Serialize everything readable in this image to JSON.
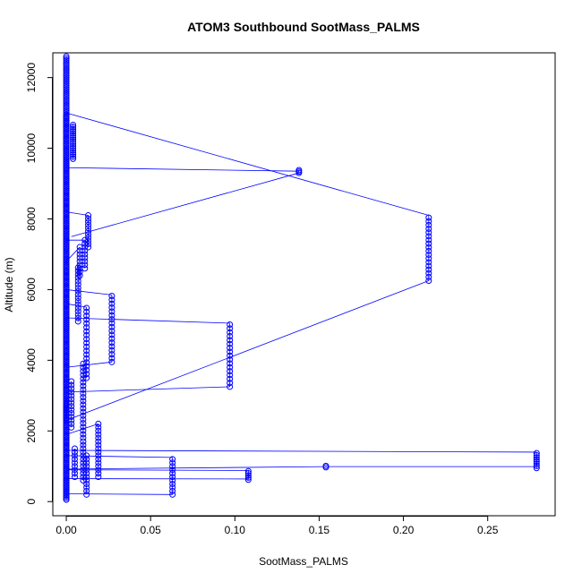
{
  "chart_data": {
    "type": "scatter",
    "title": "ATOM3 Southbound SootMass_PALMS",
    "xlabel": "SootMass_PALMS",
    "ylabel": "Altitude (m)",
    "xlim": [
      -0.008,
      0.29
    ],
    "ylim": [
      -400,
      12700
    ],
    "xticks": [
      0.0,
      0.05,
      0.1,
      0.15,
      0.2,
      0.25
    ],
    "xtick_labels": [
      "0.00",
      "0.05",
      "0.10",
      "0.15",
      "0.20",
      "0.25"
    ],
    "yticks": [
      0,
      2000,
      4000,
      6000,
      8000,
      10000,
      12000
    ],
    "ytick_labels": [
      "0",
      "2000",
      "4000",
      "6000",
      "8000",
      "10000",
      "12000"
    ],
    "grid": false,
    "marker": "open-circle",
    "line_connected": true,
    "color": "#0000ff",
    "segments": [
      {
        "x": 0.0,
        "y_start": 12600,
        "y_end": 60,
        "step": 55
      },
      {
        "x": 0.0,
        "y_start": 60,
        "y_end": 11000,
        "step": 55
      },
      {
        "x": 0.215,
        "y_start": 8100,
        "y_end": 6250,
        "step": 105
      },
      {
        "x": 0.0,
        "y_start": 2300,
        "y_end": 2800,
        "step": 60
      },
      {
        "x": 0.004,
        "y_start": 10700,
        "y_end": 9700,
        "step": 60
      },
      {
        "x": 0.138,
        "y_start": 9380,
        "y_end": 9300,
        "step": 40
      },
      {
        "x": 0.013,
        "y_start": 8100,
        "y_end": 7200,
        "step": 90
      },
      {
        "x": 0.011,
        "y_start": 7400,
        "y_end": 6600,
        "step": 100
      },
      {
        "x": 0.008,
        "y_start": 7200,
        "y_end": 6400,
        "step": 100
      },
      {
        "x": 0.027,
        "y_start": 5850,
        "y_end": 3950,
        "step": 110
      },
      {
        "x": 0.007,
        "y_start": 6700,
        "y_end": 5100,
        "step": 95
      },
      {
        "x": 0.097,
        "y_start": 5050,
        "y_end": 3250,
        "step": 110
      },
      {
        "x": 0.012,
        "y_start": 5500,
        "y_end": 3500,
        "step": 110
      },
      {
        "x": 0.01,
        "y_start": 3900,
        "y_end": 1800,
        "step": 105
      },
      {
        "x": 0.003,
        "y_start": 3400,
        "y_end": 2100,
        "step": 100
      },
      {
        "x": 0.019,
        "y_start": 2200,
        "y_end": 700,
        "step": 100
      },
      {
        "x": 0.01,
        "y_start": 1700,
        "y_end": 600,
        "step": 100
      },
      {
        "x": 0.005,
        "y_start": 1500,
        "y_end": 700,
        "step": 100
      },
      {
        "x": 0.279,
        "y_start": 1400,
        "y_end": 950,
        "step": 60
      },
      {
        "x": 0.154,
        "y_start": 1010,
        "y_end": 970,
        "step": 40
      },
      {
        "x": 0.063,
        "y_start": 1250,
        "y_end": 200,
        "step": 100
      },
      {
        "x": 0.108,
        "y_start": 900,
        "y_end": 620,
        "step": 60
      },
      {
        "x": 0.012,
        "y_start": 1300,
        "y_end": 200,
        "step": 100
      }
    ],
    "connectors": [
      [
        [
          0.0,
          11000
        ],
        [
          0.215,
          8100
        ]
      ],
      [
        [
          0.215,
          6250
        ],
        [
          0.0,
          2300
        ]
      ],
      [
        [
          0.0,
          9450
        ],
        [
          0.138,
          9350
        ]
      ],
      [
        [
          0.138,
          9300
        ],
        [
          0.003,
          7500
        ]
      ],
      [
        [
          0.0,
          8200
        ],
        [
          0.013,
          8100
        ]
      ],
      [
        [
          0.0,
          7400
        ],
        [
          0.011,
          7400
        ]
      ],
      [
        [
          0.0,
          6000
        ],
        [
          0.027,
          5850
        ]
      ],
      [
        [
          0.027,
          3950
        ],
        [
          0.0,
          3800
        ]
      ],
      [
        [
          0.0,
          5200
        ],
        [
          0.097,
          5050
        ]
      ],
      [
        [
          0.097,
          3250
        ],
        [
          0.0,
          3100
        ]
      ],
      [
        [
          0.0,
          1450
        ],
        [
          0.279,
          1400
        ]
      ],
      [
        [
          0.279,
          990
        ],
        [
          0.154,
          990
        ]
      ],
      [
        [
          0.154,
          990
        ],
        [
          0.0,
          920
        ]
      ],
      [
        [
          0.0,
          1300
        ],
        [
          0.063,
          1250
        ]
      ],
      [
        [
          0.063,
          200
        ],
        [
          0.0,
          220
        ]
      ],
      [
        [
          0.0,
          900
        ],
        [
          0.108,
          880
        ]
      ],
      [
        [
          0.108,
          640
        ],
        [
          0.0,
          650
        ]
      ],
      [
        [
          0.0,
          1900
        ],
        [
          0.019,
          2200
        ]
      ],
      [
        [
          0.0,
          5600
        ],
        [
          0.012,
          5500
        ]
      ],
      [
        [
          0.0,
          6800
        ],
        [
          0.008,
          7200
        ]
      ]
    ]
  }
}
